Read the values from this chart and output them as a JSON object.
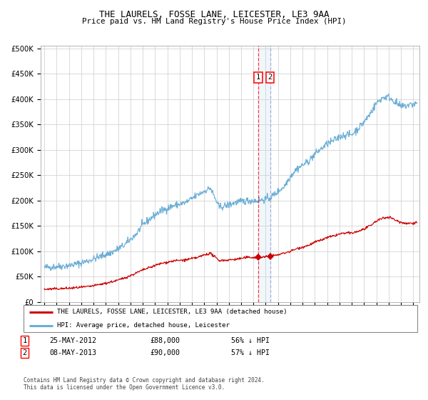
{
  "title": "THE LAURELS, FOSSE LANE, LEICESTER, LE3 9AA",
  "subtitle": "Price paid vs. HM Land Registry's House Price Index (HPI)",
  "legend1": "THE LAURELS, FOSSE LANE, LEICESTER, LE3 9AA (detached house)",
  "legend2": "HPI: Average price, detached house, Leicester",
  "footer": "Contains HM Land Registry data © Crown copyright and database right 2024.\nThis data is licensed under the Open Government Licence v3.0.",
  "annotation1_label": "1",
  "annotation1_date": "25-MAY-2012",
  "annotation1_price": "£88,000",
  "annotation1_hpi": "56% ↓ HPI",
  "annotation2_label": "2",
  "annotation2_date": "08-MAY-2013",
  "annotation2_price": "£90,000",
  "annotation2_hpi": "57% ↓ HPI",
  "sale1_year": 2012.39,
  "sale1_price": 88000,
  "sale2_year": 2013.35,
  "sale2_price": 90000,
  "hpi_color": "#6baed6",
  "price_color": "#cc0000",
  "background_color": "#ffffff",
  "grid_color": "#cccccc",
  "xlim_start": 1994.7,
  "xlim_end": 2025.5,
  "ylim_max": 505000
}
